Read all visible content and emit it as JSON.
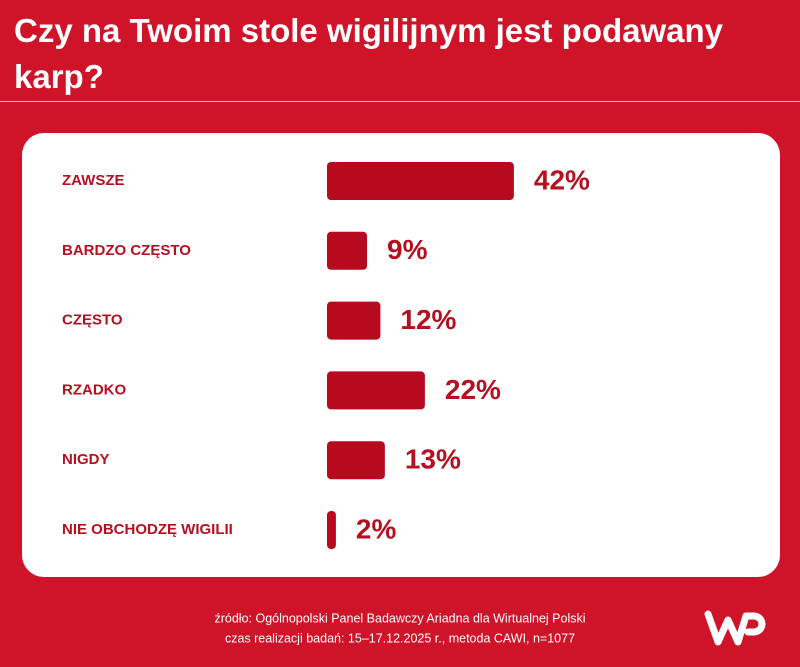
{
  "chart_data": {
    "type": "bar",
    "orientation": "horizontal",
    "title": "Czy na Twoim stole wigilijnym jest podawany karp?",
    "categories": [
      "ZAWSZE",
      "BARDZO CZĘSTO",
      "CZĘSTO",
      "RZADKO",
      "NIGDY",
      "NIE OBCHODZĘ WIGILII"
    ],
    "values": [
      42,
      9,
      12,
      22,
      13,
      2
    ],
    "value_labels": [
      "42%",
      "9%",
      "12%",
      "22%",
      "13%",
      "2%"
    ],
    "color": "#b80a1e",
    "source": "źródło: Ogólnopolski Panel Badawczy Ariadna dla Wirtualnej Polski",
    "note": "czas realizacji badań: 15–17.12.2025 r., metoda CAWI, n=1077"
  }
}
